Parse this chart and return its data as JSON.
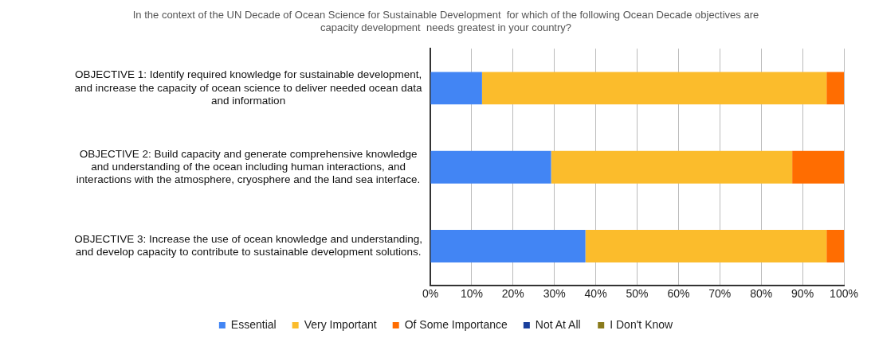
{
  "chart_data": {
    "type": "bar",
    "orientation": "horizontal",
    "stacked": true,
    "title": "In the context of the UN Decade of Ocean Science for Sustainable Development  for which of the following Ocean Decade objectives are capacity development  needs greatest in your country?",
    "categories": [
      "OBJECTIVE 1: Identify required knowledge for sustainable development, and increase the capacity of ocean science to deliver needed ocean data and information",
      "OBJECTIVE 2: Build capacity and generate comprehensive knowledge and understanding of the ocean including human interactions, and interactions with the atmosphere, cryosphere and the land sea interface.",
      "OBJECTIVE 3: Increase the use of ocean knowledge and understanding, and develop capacity to contribute to sustainable development solutions."
    ],
    "series": [
      {
        "name": "Essential",
        "color": "#4285f4",
        "values": [
          12.5,
          29.2,
          37.5
        ]
      },
      {
        "name": "Very Important",
        "color": "#fbbc2c",
        "values": [
          83.3,
          58.3,
          58.3
        ]
      },
      {
        "name": "Of Some Importance",
        "color": "#ff6d01",
        "values": [
          4.2,
          12.5,
          4.2
        ]
      },
      {
        "name": "Not At All",
        "color": "#1a3f9c",
        "values": [
          0,
          0,
          0
        ]
      },
      {
        "name": "I Don't Know",
        "color": "#8a7b1c",
        "values": [
          0,
          0,
          0
        ]
      }
    ],
    "xlim": [
      0,
      100
    ],
    "xticks": [
      {
        "value": 0,
        "label": "0%"
      },
      {
        "value": 10,
        "label": "10%"
      },
      {
        "value": 20,
        "label": "20%"
      },
      {
        "value": 30,
        "label": "30%"
      },
      {
        "value": 40,
        "label": "40%"
      },
      {
        "value": 50,
        "label": "50%"
      },
      {
        "value": 60,
        "label": "60%"
      },
      {
        "value": 70,
        "label": "70%"
      },
      {
        "value": 80,
        "label": "80%"
      },
      {
        "value": 90,
        "label": "90%"
      },
      {
        "value": 100,
        "label": "100%"
      }
    ],
    "grid": "x",
    "legend": "bottom"
  }
}
